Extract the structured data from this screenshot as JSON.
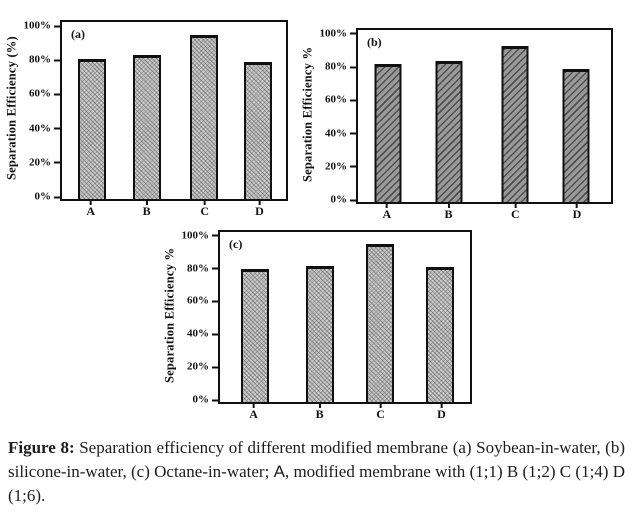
{
  "figure": {
    "caption": {
      "parts": [
        {
          "text": "Figure 8:",
          "style": "bold"
        },
        {
          "text": " Separation efficiency of different modified membrane (a) Soybean-in-water, (b) silicone-in-water, (c) Octane-in-water; ",
          "style": "normal"
        },
        {
          "text": "A",
          "style": "sans"
        },
        {
          "text": ", modified membrane with (1;1) B (1;2) C (1;4) D (1;6).",
          "style": "normal"
        }
      ]
    },
    "colors": {
      "axis": "#101010",
      "light_bar_fill": "#cccccc",
      "dark_bar_fill": "#999999",
      "text": "#1c1c1c",
      "background": "#ffffff"
    }
  },
  "chart_data": [
    {
      "type": "bar",
      "panel_label": "(a)",
      "title": "",
      "xlabel": "",
      "ylabel": "Separation Efficiency (%)",
      "categories": [
        "A",
        "B",
        "C",
        "D"
      ],
      "values": [
        82,
        84,
        96,
        80
      ],
      "ylim": [
        0,
        100
      ],
      "yticks": [
        0,
        20,
        40,
        60,
        80,
        100
      ],
      "ytick_suffix": "%",
      "grid": false,
      "legend": "none",
      "bar_style": "light-hatch"
    },
    {
      "type": "bar",
      "panel_label": "(b)",
      "title": "",
      "xlabel": "",
      "ylabel": "Separation Efficiency %",
      "categories": [
        "A",
        "B",
        "C",
        "D"
      ],
      "values": [
        83,
        85,
        94,
        80
      ],
      "ylim": [
        0,
        100
      ],
      "yticks": [
        0,
        20,
        40,
        60,
        80,
        100
      ],
      "ytick_suffix": "%",
      "grid": false,
      "legend": "none",
      "bar_style": "dark-hatch"
    },
    {
      "type": "bar",
      "panel_label": "(c)",
      "title": "",
      "xlabel": "",
      "ylabel": "Separation Efficiency %",
      "categories": [
        "A",
        "B",
        "C",
        "D"
      ],
      "values": [
        81,
        83,
        96,
        82
      ],
      "ylim": [
        0,
        100
      ],
      "yticks": [
        0,
        20,
        40,
        60,
        80,
        100
      ],
      "ytick_suffix": "%",
      "grid": false,
      "legend": "none",
      "bar_style": "light-hatch"
    }
  ]
}
